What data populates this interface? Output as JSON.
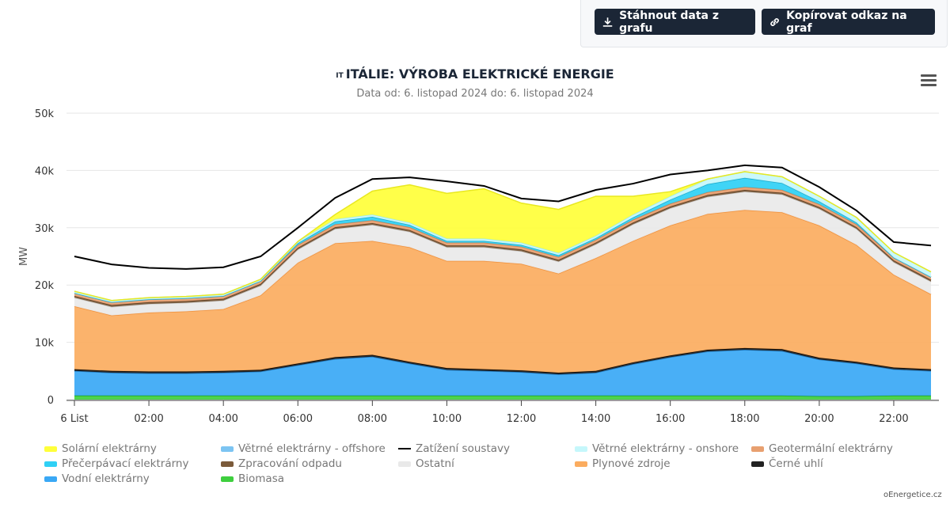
{
  "toolbar": {
    "download_label": "Stáhnout data z grafu",
    "copy_link_label": "Kopírovat odkaz na graf"
  },
  "flag_code": "IT",
  "menu_icon": "hamburger-menu-icon",
  "credit": "oEnergetice.cz",
  "chart_data": {
    "type": "area",
    "stacked": true,
    "title": "ITÁLIE: VÝROBA ELEKTRICKÉ ENERGIE",
    "subtitle": "Data od: 6. listopad 2024 do: 6. listopad 2024",
    "ylabel": "MW",
    "ylim": [
      0,
      50000
    ],
    "yticks": [
      0,
      10000,
      20000,
      30000,
      40000,
      50000
    ],
    "ytick_labels": [
      "0",
      "10k",
      "20k",
      "30k",
      "40k",
      "50k"
    ],
    "x": [
      0,
      1,
      2,
      3,
      4,
      5,
      6,
      7,
      8,
      9,
      10,
      11,
      12,
      13,
      14,
      15,
      16,
      17,
      18,
      19,
      20,
      21,
      22,
      23
    ],
    "xtick_positions": [
      0,
      2,
      4,
      6,
      8,
      10,
      12,
      14,
      16,
      18,
      20,
      22
    ],
    "xtick_labels": [
      "6 List",
      "02:00",
      "04:00",
      "06:00",
      "08:00",
      "10:00",
      "12:00",
      "14:00",
      "16:00",
      "18:00",
      "20:00",
      "22:00"
    ],
    "grid": true,
    "legend_position": "bottom",
    "series": [
      {
        "name": "Biomasa",
        "color": "#3ecf3e",
        "edge": "#22a822",
        "values": [
          700,
          700,
          700,
          700,
          700,
          700,
          700,
          700,
          700,
          700,
          700,
          700,
          700,
          700,
          700,
          700,
          700,
          700,
          700,
          700,
          600,
          600,
          700,
          700
        ]
      },
      {
        "name": "Vodní elektrárny",
        "color": "#3aa8f5",
        "edge": "#1f7fc9",
        "values": [
          4300,
          4000,
          3900,
          3900,
          4000,
          4200,
          5300,
          6400,
          6800,
          5600,
          4500,
          4300,
          4100,
          3700,
          4000,
          5500,
          6700,
          7700,
          8000,
          7800,
          6400,
          5700,
          4600,
          4300
        ]
      },
      {
        "name": "Černé uhlí",
        "color": "#222222",
        "edge": "#000000",
        "values": [
          300,
          300,
          300,
          300,
          300,
          300,
          300,
          300,
          300,
          300,
          300,
          300,
          300,
          300,
          300,
          300,
          300,
          300,
          300,
          300,
          300,
          300,
          300,
          300
        ]
      },
      {
        "name": "Plynové zdroje",
        "color": "#fbac5f",
        "edge": "#f0903a",
        "values": [
          11000,
          9700,
          10300,
          10500,
          10800,
          13000,
          17600,
          19900,
          19900,
          20000,
          18700,
          18900,
          18600,
          17300,
          19700,
          21200,
          22700,
          23700,
          24100,
          23900,
          23100,
          20400,
          16200,
          13100
        ]
      },
      {
        "name": "Ostatní",
        "color": "#e9e9e9",
        "edge": "#cccccc",
        "values": [
          1500,
          1500,
          1500,
          1500,
          1500,
          1700,
          2300,
          2500,
          2800,
          2700,
          2400,
          2400,
          2200,
          2100,
          2400,
          2900,
          3000,
          3000,
          3200,
          3100,
          2900,
          2800,
          2200,
          2200
        ]
      },
      {
        "name": "Zpracování odpadu",
        "color": "#7b5a3a",
        "edge": "#5a3f25",
        "values": [
          300,
          300,
          300,
          300,
          300,
          300,
          300,
          300,
          300,
          300,
          300,
          300,
          300,
          300,
          300,
          300,
          300,
          300,
          300,
          300,
          300,
          300,
          300,
          300
        ]
      },
      {
        "name": "Geotermální elektrárny",
        "color": "#e8a070",
        "edge": "#c97f50",
        "values": [
          500,
          500,
          500,
          500,
          500,
          500,
          500,
          500,
          500,
          500,
          500,
          500,
          500,
          500,
          500,
          500,
          500,
          500,
          500,
          500,
          500,
          500,
          500,
          500
        ]
      },
      {
        "name": "Přečerpávací elektrárny",
        "color": "#2fd0f5",
        "edge": "#19a9cc",
        "values": [
          0,
          0,
          0,
          0,
          0,
          0,
          300,
          500,
          600,
          400,
          300,
          300,
          300,
          300,
          300,
          400,
          700,
          1400,
          1600,
          1200,
          500,
          300,
          0,
          0
        ]
      },
      {
        "name": "Větrné elektrárny - offshore",
        "color": "#7cc4f2",
        "edge": "#5aa8dd",
        "values": [
          0,
          0,
          0,
          0,
          0,
          0,
          0,
          0,
          0,
          0,
          0,
          0,
          0,
          0,
          0,
          0,
          0,
          0,
          0,
          0,
          0,
          0,
          0,
          0
        ]
      },
      {
        "name": "Větrné elektrárny - onshore",
        "color": "#c5f7fb",
        "edge": "#9deaf2",
        "values": [
          300,
          300,
          300,
          300,
          300,
          300,
          300,
          400,
          400,
          400,
          400,
          400,
          400,
          400,
          400,
          500,
          600,
          900,
          1100,
          1100,
          900,
          900,
          900,
          900
        ]
      },
      {
        "name": "Solární elektrárny",
        "color": "#ffff3a",
        "edge": "#e8e820",
        "values": [
          0,
          0,
          0,
          0,
          0,
          0,
          0,
          800,
          4100,
          6600,
          7900,
          8700,
          6900,
          7600,
          6900,
          3200,
          800,
          0,
          0,
          0,
          0,
          0,
          0,
          0
        ]
      }
    ],
    "load": {
      "name": "Zatížení soustavy",
      "color": "#000000",
      "values": [
        25000,
        23600,
        23000,
        22800,
        23100,
        25000,
        30000,
        35200,
        38500,
        38800,
        38100,
        37300,
        35100,
        34600,
        36600,
        37700,
        39300,
        40000,
        40900,
        40500,
        37100,
        33000,
        27500,
        26900
      ]
    }
  },
  "legend": [
    {
      "label": "Solární elektrárny",
      "color": "#ffff3a",
      "kind": "area"
    },
    {
      "label": "Větrné elektrárny - offshore",
      "color": "#7cc4f2",
      "kind": "area"
    },
    {
      "label": "Zatížení soustavy",
      "color": "#000000",
      "kind": "line"
    },
    {
      "label": "Větrné elektrárny - onshore",
      "color": "#c5f7fb",
      "kind": "area"
    },
    {
      "label": "Geotermální elektrárny",
      "color": "#e8a070",
      "kind": "area"
    },
    {
      "label": "Přečerpávací elektrárny",
      "color": "#2fd0f5",
      "kind": "area"
    },
    {
      "label": "Zpracování odpadu",
      "color": "#7b5a3a",
      "kind": "area"
    },
    {
      "label": "Ostatní",
      "color": "#e9e9e9",
      "kind": "area"
    },
    {
      "label": "Plynové zdroje",
      "color": "#fbac5f",
      "kind": "area"
    },
    {
      "label": "Černé uhlí",
      "color": "#222222",
      "kind": "area"
    },
    {
      "label": "Vodní elektrárny",
      "color": "#3aa8f5",
      "kind": "area"
    },
    {
      "label": "Biomasa",
      "color": "#3ecf3e",
      "kind": "area"
    }
  ]
}
